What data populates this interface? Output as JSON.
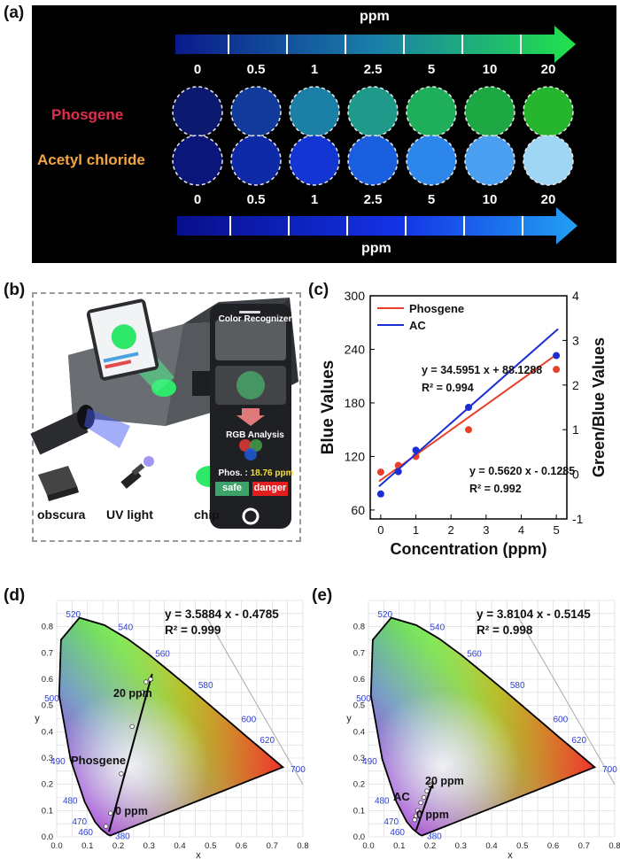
{
  "panel_a": {
    "label": "(a)",
    "unit_top": "ppm",
    "unit_bottom": "ppm",
    "concentrations": [
      "0",
      "0.5",
      "1",
      "2.5",
      "5",
      "10",
      "20"
    ],
    "row1_label": "Phosgene",
    "row2_label": "Acetyl chloride",
    "row1_colors": [
      "#0b1a6e",
      "#123a9a",
      "#1b7fa6",
      "#1f9a8a",
      "#1fae5a",
      "#1ea844",
      "#25b62e"
    ],
    "row2_colors": [
      "#0a167a",
      "#0e2aa6",
      "#1235d4",
      "#1a5fe0",
      "#2d86ea",
      "#4a9ff0",
      "#9fd6f4"
    ],
    "row1_label_color": "#e02f4e",
    "row2_label_color": "#f2a641"
  },
  "panel_b": {
    "label": "(b)",
    "items": [
      "obscura",
      "UV light",
      "chip"
    ],
    "phone_title": "Color Recognizer",
    "phone_rgb": "RGB Analysis",
    "phone_result_label": "Phos. :",
    "phone_result_value": "18.76 ppm",
    "safe_label": "safe",
    "danger_label": "danger"
  },
  "panel_c": {
    "label": "(c)",
    "chart_data": {
      "type": "scatter",
      "xlabel": "Concentration (ppm)",
      "ylabel_left": "Blue Values",
      "ylabel_right": "Green/Blue Values",
      "xlim": [
        -0.3,
        5.3
      ],
      "x_ticks": [
        0,
        1,
        2,
        3,
        4,
        5
      ],
      "ylim_left": [
        50,
        300
      ],
      "y_ticks_left": [
        60,
        120,
        180,
        240,
        300
      ],
      "ylim_right": [
        -1,
        4
      ],
      "y_ticks_right": [
        -1,
        0,
        1,
        2,
        3,
        4
      ],
      "legend": [
        "Phosgene",
        "AC"
      ],
      "series": [
        {
          "name": "Phosgene",
          "color": "#e8402a",
          "axis": "right",
          "x": [
            0,
            0.5,
            1,
            2.5,
            5
          ],
          "y": [
            0.05,
            0.2,
            0.4,
            1.0,
            2.35
          ],
          "fit": {
            "slope": 0.562,
            "intercept": -0.1285
          }
        },
        {
          "name": "AC",
          "color": "#1a2fd0",
          "axis": "left",
          "x": [
            0,
            0.5,
            1,
            2.5,
            5
          ],
          "y": [
            78,
            103,
            127,
            175,
            233
          ],
          "fit": {
            "slope": 34.5951,
            "intercept": 88.1288
          }
        }
      ],
      "annotations": {
        "ac_eq": "y = 34.5951 x + 88.1288",
        "ac_r2": "R² = 0.994",
        "phos_eq": "y = 0.5620 x - 0.1285",
        "phos_r2": "R² = 0.992"
      }
    }
  },
  "panel_d": {
    "label": "(d)",
    "chart_data": {
      "type": "scatter",
      "xlabel": "x",
      "ylabel": "y",
      "xlim": [
        0,
        0.8
      ],
      "ylim": [
        0,
        0.9
      ],
      "x_ticks": [
        "0.0",
        "0.1",
        "0.2",
        "0.3",
        "0.4",
        "0.5",
        "0.6",
        "0.7",
        "0.8"
      ],
      "y_ticks": [
        "0.0",
        "0.1",
        "0.2",
        "0.3",
        "0.4",
        "0.5",
        "0.6",
        "0.7",
        "0.8"
      ],
      "wavelength_labels": [
        "380",
        "460",
        "470",
        "480",
        "490",
        "500",
        "520",
        "540",
        "560",
        "580",
        "600",
        "620",
        "700"
      ],
      "series_name": "Phosgene",
      "points_x": [
        0.16,
        0.175,
        0.21,
        0.245,
        0.28,
        0.29,
        0.305
      ],
      "points_y": [
        0.04,
        0.09,
        0.24,
        0.42,
        0.55,
        0.59,
        0.6
      ],
      "arrow_start": [
        0.17,
        0.02
      ],
      "arrow_end": [
        0.31,
        0.62
      ],
      "start_label": "0 ppm",
      "end_label": "20 ppm",
      "equation": "y = 3.5884 x - 0.4785",
      "r2": "R² = 0.999"
    }
  },
  "panel_e": {
    "label": "(e)",
    "chart_data": {
      "type": "scatter",
      "xlabel": "x",
      "ylabel": "y",
      "xlim": [
        0,
        0.8
      ],
      "ylim": [
        0,
        0.9
      ],
      "x_ticks": [
        "0.0",
        "0.1",
        "0.2",
        "0.3",
        "0.4",
        "0.5",
        "0.6",
        "0.7",
        "0.8"
      ],
      "y_ticks": [
        "0.0",
        "0.1",
        "0.2",
        "0.3",
        "0.4",
        "0.5",
        "0.6",
        "0.7",
        "0.8"
      ],
      "wavelength_labels": [
        "380",
        "460",
        "470",
        "480",
        "490",
        "500",
        "520",
        "540",
        "560",
        "580",
        "600",
        "620",
        "700"
      ],
      "series_name": "AC",
      "points_x": [
        0.15,
        0.155,
        0.16,
        0.17,
        0.18,
        0.19,
        0.2
      ],
      "points_y": [
        0.065,
        0.08,
        0.1,
        0.13,
        0.15,
        0.175,
        0.2
      ],
      "arrow_start": [
        0.155,
        0.025
      ],
      "arrow_end": [
        0.21,
        0.21
      ],
      "start_label": "0 ppm",
      "end_label": "20 ppm",
      "equation": "y = 3.8104 x - 0.5145",
      "r2": "R² = 0.998"
    }
  }
}
